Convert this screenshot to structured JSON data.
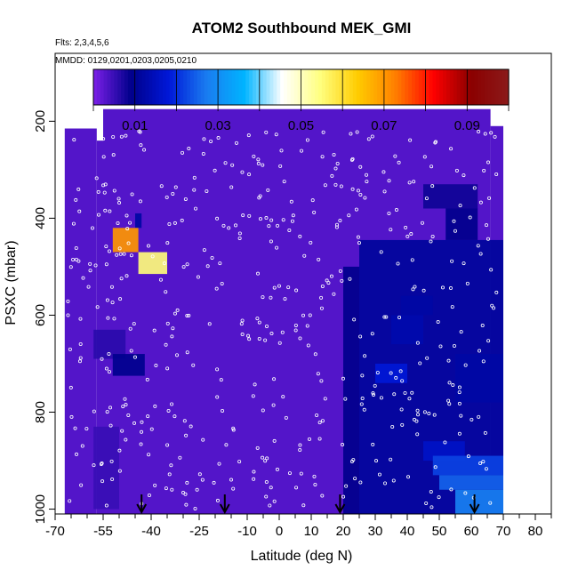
{
  "chart_data": {
    "type": "heatmap",
    "title": "ATOM2 Southbound MEK_GMI",
    "flights_note": "Flts: 2,3,4,5,6",
    "dates_note": "MMDD: 0129,0201,0203,0205,0210",
    "xlabel": "Latitude (deg N)",
    "ylabel": "PSXC (mbar)",
    "xlim": [
      -70,
      85
    ],
    "ylim": [
      1010,
      60
    ],
    "y_reversed": true,
    "x_ticks": [
      -70,
      -55,
      -40,
      -25,
      -10,
      0,
      10,
      20,
      30,
      40,
      50,
      60,
      70,
      80
    ],
    "x_tick_labels": [
      "-70",
      "-55",
      "-40",
      "-25",
      "-10",
      "0",
      "10",
      "20",
      "30",
      "40",
      "50",
      "60",
      "70",
      "80"
    ],
    "x_minor_ticks": [
      -65,
      -60,
      -50,
      -45,
      -35,
      -30,
      -20,
      -15,
      -5,
      5,
      15,
      25,
      35,
      45,
      55,
      65,
      75,
      85
    ],
    "y_ticks": [
      200,
      400,
      600,
      800,
      1000
    ],
    "y_tick_labels": [
      "200",
      "400",
      "600",
      "800",
      "1000"
    ],
    "colorbar": {
      "range": [
        0,
        0.1
      ],
      "ticks": [
        0.01,
        0.03,
        0.05,
        0.07,
        0.09
      ],
      "tick_labels": [
        "0.01",
        "0.03",
        "0.05",
        "0.07",
        "0.09"
      ],
      "boundaries": [
        0,
        0.01,
        0.02,
        0.03,
        0.04,
        0.05,
        0.06,
        0.07,
        0.08,
        0.09,
        0.1
      ],
      "stops": [
        "#7c1fe8",
        "#00008b",
        "#0018d8",
        "#1a7cf0",
        "#00b4ff",
        "#ffffff",
        "#ffff80",
        "#ffcc00",
        "#ff7f00",
        "#ff0000",
        "#8b0000",
        "#8b1a1a"
      ]
    },
    "background_value": 0.003,
    "domain_extents": [
      {
        "x": [
          -67,
          -57
        ],
        "p": [
          215,
          1010
        ]
      },
      {
        "x": [
          -57,
          -55
        ],
        "p": [
          240,
          1010
        ]
      },
      {
        "x": [
          -55,
          5
        ],
        "p": [
          175,
          1010
        ]
      },
      {
        "x": [
          5,
          25
        ],
        "p": [
          175,
          1010
        ]
      },
      {
        "x": [
          25,
          66
        ],
        "p": [
          175,
          1010
        ]
      },
      {
        "x": [
          66,
          70
        ],
        "p": [
          210,
          1010
        ]
      }
    ],
    "cells": [
      {
        "x": [
          45,
          62
        ],
        "p": [
          330,
          380
        ],
        "v": 0.008
      },
      {
        "x": [
          52,
          62
        ],
        "p": [
          380,
          445
        ],
        "v": 0.009
      },
      {
        "x": [
          25,
          70
        ],
        "p": [
          445,
          1010
        ],
        "v": 0.011
      },
      {
        "x": [
          20,
          25
        ],
        "p": [
          500,
          1010
        ],
        "v": 0.009
      },
      {
        "x": [
          38,
          48
        ],
        "p": [
          560,
          600
        ],
        "v": 0.012
      },
      {
        "x": [
          35,
          45
        ],
        "p": [
          600,
          660
        ],
        "v": 0.013
      },
      {
        "x": [
          30,
          40
        ],
        "p": [
          700,
          740
        ],
        "v": 0.018
      },
      {
        "x": [
          55,
          70
        ],
        "p": [
          680,
          780
        ],
        "v": 0.012
      },
      {
        "x": [
          45,
          58
        ],
        "p": [
          860,
          900
        ],
        "v": 0.016
      },
      {
        "x": [
          48,
          70
        ],
        "p": [
          890,
          930
        ],
        "v": 0.022
      },
      {
        "x": [
          50,
          70
        ],
        "p": [
          930,
          960
        ],
        "v": 0.025
      },
      {
        "x": [
          55,
          70
        ],
        "p": [
          960,
          1010
        ],
        "v": 0.028
      },
      {
        "x": [
          -58,
          -48
        ],
        "p": [
          630,
          690
        ],
        "v": 0.006
      },
      {
        "x": [
          -52,
          -42
        ],
        "p": [
          680,
          725
        ],
        "v": 0.0095
      },
      {
        "x": [
          -58,
          -50
        ],
        "p": [
          830,
          1000
        ],
        "v": 0.005
      },
      {
        "x": [
          -45,
          -43
        ],
        "p": [
          390,
          420
        ],
        "v": 0.012
      },
      {
        "x": [
          -52,
          -44
        ],
        "p": [
          420,
          470
        ],
        "v": 0.07
      },
      {
        "x": [
          -44,
          -35
        ],
        "p": [
          470,
          515
        ],
        "v": 0.055
      }
    ],
    "obs_points_count": 500,
    "flight_arrows_lat": [
      -43,
      -17,
      19,
      61
    ]
  }
}
